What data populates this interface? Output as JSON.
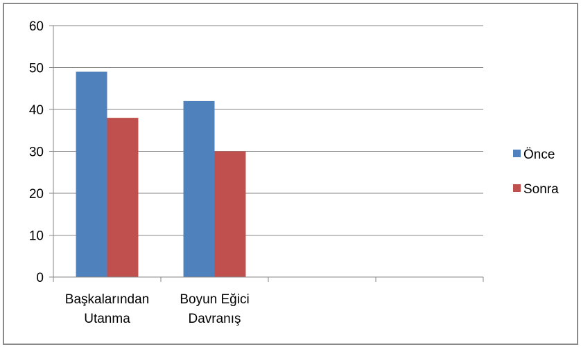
{
  "chart_data": {
    "type": "bar",
    "categories": [
      [
        "Başkalarından",
        "Utanma"
      ],
      [
        "Boyun Eğici",
        "Davranış"
      ],
      [
        ""
      ],
      [
        ""
      ]
    ],
    "series": [
      {
        "name": "Önce",
        "color": "#4f81bd",
        "values": [
          49,
          42,
          null,
          null
        ]
      },
      {
        "name": "Sonra",
        "color": "#c0504d",
        "values": [
          38,
          30,
          null,
          null
        ]
      }
    ],
    "ylim": [
      0,
      60
    ],
    "yticks": [
      0,
      10,
      20,
      30,
      40,
      50,
      60
    ],
    "grid": true,
    "legend": "right",
    "title": "",
    "xlabel": "",
    "ylabel": ""
  }
}
